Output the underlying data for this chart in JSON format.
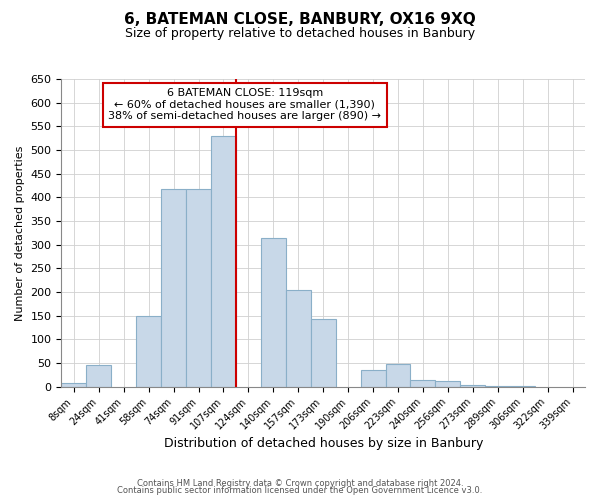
{
  "title": "6, BATEMAN CLOSE, BANBURY, OX16 9XQ",
  "subtitle": "Size of property relative to detached houses in Banbury",
  "xlabel": "Distribution of detached houses by size in Banbury",
  "ylabel": "Number of detached properties",
  "footer_lines": [
    "Contains HM Land Registry data © Crown copyright and database right 2024.",
    "Contains public sector information licensed under the Open Government Licence v3.0."
  ],
  "bin_labels": [
    "8sqm",
    "24sqm",
    "41sqm",
    "58sqm",
    "74sqm",
    "91sqm",
    "107sqm",
    "124sqm",
    "140sqm",
    "157sqm",
    "173sqm",
    "190sqm",
    "206sqm",
    "223sqm",
    "240sqm",
    "256sqm",
    "273sqm",
    "289sqm",
    "306sqm",
    "322sqm",
    "339sqm"
  ],
  "bar_heights": [
    8,
    45,
    0,
    150,
    418,
    418,
    530,
    0,
    315,
    205,
    143,
    0,
    35,
    48,
    15,
    12,
    3,
    2,
    2,
    0,
    0
  ],
  "bar_color": "#c8d8e8",
  "bar_edge_color": "#8aafc8",
  "property_label": "6 BATEMAN CLOSE: 119sqm",
  "annotation_line1": "← 60% of detached houses are smaller (1,390)",
  "annotation_line2": "38% of semi-detached houses are larger (890) →",
  "vline_color": "#cc0000",
  "ylim": [
    0,
    650
  ],
  "yticks": [
    0,
    50,
    100,
    150,
    200,
    250,
    300,
    350,
    400,
    450,
    500,
    550,
    600,
    650
  ],
  "background_color": "#ffffff",
  "grid_color": "#d0d0d0"
}
